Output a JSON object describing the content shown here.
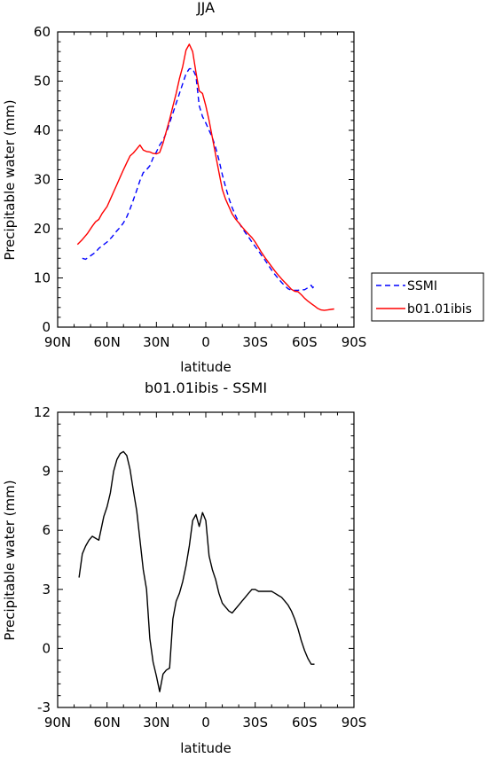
{
  "chart_data": [
    {
      "type": "line",
      "title": "JJA",
      "xlabel": "latitude",
      "ylabel": "Precipitable water (mm)",
      "xlim": [
        90,
        -90
      ],
      "ylim": [
        0,
        60
      ],
      "xticks": [
        {
          "value": 90,
          "label": "90N"
        },
        {
          "value": 60,
          "label": "60N"
        },
        {
          "value": 30,
          "label": "30N"
        },
        {
          "value": 0,
          "label": "0"
        },
        {
          "value": -30,
          "label": "30S"
        },
        {
          "value": -60,
          "label": "60S"
        },
        {
          "value": -90,
          "label": "90S"
        }
      ],
      "yticks": [
        0,
        10,
        20,
        30,
        40,
        50,
        60
      ],
      "legend_position": "right",
      "series": [
        {
          "name": "SSMI",
          "color": "#0000ff",
          "dash": "dashed",
          "x": [
            75,
            73,
            70,
            67,
            65,
            62,
            60,
            57,
            55,
            52,
            50,
            48,
            46,
            44,
            42,
            40,
            38,
            36,
            34,
            32,
            30,
            28,
            26,
            24,
            22,
            20,
            18,
            16,
            14,
            12,
            10,
            8,
            6,
            4,
            2,
            0,
            -2,
            -4,
            -6,
            -8,
            -10,
            -12,
            -14,
            -16,
            -18,
            -20,
            -22,
            -24,
            -26,
            -28,
            -30,
            -32,
            -34,
            -36,
            -38,
            -40,
            -42,
            -44,
            -46,
            -48,
            -50,
            -52,
            -54,
            -56,
            -58,
            -60,
            -62,
            -64,
            -65,
            -66,
            -67
          ],
          "y": [
            14,
            13.8,
            14.5,
            15.2,
            16,
            16.8,
            17.3,
            18.3,
            19.2,
            20.3,
            21.2,
            22.4,
            24,
            25.9,
            27.8,
            29.8,
            31.4,
            32,
            32.8,
            34.4,
            35.6,
            37,
            38,
            39.5,
            41.5,
            43.5,
            45.5,
            47.5,
            49.5,
            51.5,
            52.5,
            52.5,
            51,
            45,
            42.8,
            41.5,
            40,
            38.5,
            36.5,
            34,
            31,
            28.5,
            26.2,
            24.3,
            22.7,
            21.3,
            20.2,
            19.2,
            18.3,
            17.3,
            16.4,
            15.5,
            14.5,
            13.6,
            12.6,
            11.6,
            10.7,
            9.9,
            9.1,
            8.4,
            7.8,
            7.5,
            7.5,
            7.5,
            7.6,
            7.6,
            8.0,
            8.5,
            8.0,
            8.4,
            8.4
          ]
        },
        {
          "name": "b01.01ibis",
          "color": "#ff0000",
          "dash": "solid",
          "x": [
            78,
            75,
            72,
            69,
            67,
            65,
            63,
            60,
            58,
            56,
            54,
            52,
            50,
            48,
            46,
            44,
            42,
            40,
            38,
            36,
            34,
            32,
            30,
            28,
            26,
            24,
            22,
            20,
            18,
            16,
            14,
            12,
            10,
            8,
            6,
            4,
            2,
            0,
            -2,
            -4,
            -6,
            -8,
            -10,
            -12,
            -14,
            -16,
            -18,
            -20,
            -22,
            -24,
            -26,
            -28,
            -30,
            -32,
            -34,
            -36,
            -38,
            -40,
            -42,
            -44,
            -46,
            -48,
            -50,
            -52,
            -54,
            -56,
            -58,
            -60,
            -62,
            -64,
            -66,
            -68,
            -70,
            -72,
            -74,
            -76,
            -78
          ],
          "y": [
            16.8,
            17.8,
            19,
            20.5,
            21.4,
            21.9,
            23.1,
            24.5,
            26,
            27.5,
            29,
            30.5,
            32,
            33.4,
            34.8,
            35.4,
            36.2,
            37,
            36,
            35.7,
            35.6,
            35.3,
            35.2,
            35.5,
            37.4,
            39.8,
            42.2,
            44.9,
            47.5,
            50.5,
            53,
            56.3,
            57.5,
            56,
            51.8,
            48,
            47.5,
            45,
            42,
            38.5,
            35,
            31.5,
            28,
            26,
            24.5,
            23,
            22,
            21.2,
            20.4,
            19.6,
            18.9,
            18.2,
            17.3,
            16.2,
            15.1,
            14.1,
            13.2,
            12.3,
            11.4,
            10.6,
            9.8,
            9.1,
            8.4,
            7.7,
            7.3,
            7.2,
            6.6,
            5.9,
            5.3,
            4.8,
            4.3,
            3.8,
            3.5,
            3.4,
            3.5,
            3.6,
            3.7
          ]
        }
      ]
    },
    {
      "type": "line",
      "title": "b01.01ibis - SSMI",
      "xlabel": "latitude",
      "ylabel": "Precipitable water (mm)",
      "xlim": [
        90,
        -90
      ],
      "ylim": [
        -3,
        12
      ],
      "xticks": [
        {
          "value": 90,
          "label": "90N"
        },
        {
          "value": 60,
          "label": "60N"
        },
        {
          "value": 30,
          "label": "30N"
        },
        {
          "value": 0,
          "label": "0"
        },
        {
          "value": -30,
          "label": "30S"
        },
        {
          "value": -60,
          "label": "60S"
        },
        {
          "value": -90,
          "label": "90S"
        }
      ],
      "yticks": [
        -3,
        0,
        3,
        6,
        9,
        12
      ],
      "series": [
        {
          "color": "#000000",
          "dash": "solid",
          "x": [
            77,
            75,
            73,
            71,
            69,
            67,
            65,
            62,
            60,
            58,
            56,
            54,
            52,
            50,
            48,
            46,
            44,
            42,
            40,
            38,
            36,
            34,
            32,
            30,
            28,
            26,
            24,
            22,
            20,
            18,
            16,
            14,
            12,
            10,
            8,
            6,
            4,
            2,
            0,
            -2,
            -4,
            -6,
            -8,
            -10,
            -12,
            -14,
            -16,
            -18,
            -20,
            -22,
            -24,
            -26,
            -28,
            -30,
            -32,
            -34,
            -36,
            -38,
            -40,
            -42,
            -44,
            -46,
            -48,
            -50,
            -52,
            -54,
            -56,
            -58,
            -60,
            -62,
            -64,
            -66
          ],
          "y": [
            3.6,
            4.8,
            5.2,
            5.5,
            5.7,
            5.6,
            5.5,
            6.7,
            7.2,
            7.9,
            9.0,
            9.6,
            9.9,
            10.0,
            9.8,
            9.1,
            8.0,
            7.0,
            5.5,
            4.0,
            3.0,
            0.5,
            -0.7,
            -1.4,
            -2.2,
            -1.3,
            -1.1,
            -1.0,
            1.5,
            2.4,
            2.8,
            3.4,
            4.2,
            5.2,
            6.5,
            6.8,
            6.2,
            6.9,
            6.5,
            4.7,
            4.0,
            3.5,
            2.8,
            2.3,
            2.1,
            1.9,
            1.8,
            2.0,
            2.2,
            2.4,
            2.6,
            2.8,
            3.0,
            3.0,
            2.9,
            2.9,
            2.9,
            2.9,
            2.9,
            2.8,
            2.7,
            2.6,
            2.4,
            2.2,
            1.9,
            1.5,
            1.0,
            0.4,
            -0.1,
            -0.5,
            -0.8,
            -0.8
          ]
        }
      ]
    }
  ]
}
